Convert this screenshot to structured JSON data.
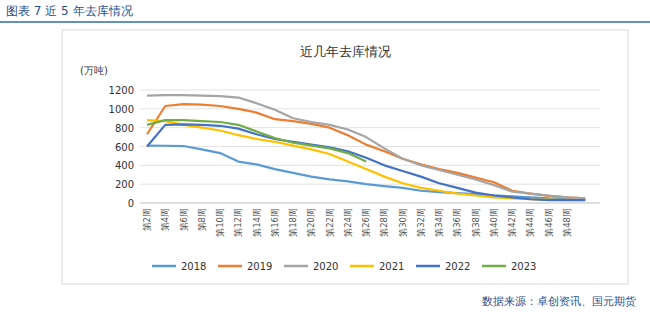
{
  "caption": "图表 7 近 5 年去库情况",
  "source": "数据来源：卓创资讯、国元期货",
  "chart_data": {
    "type": "line",
    "title": "近几年去库情况",
    "y_label": "(万吨)",
    "categories": [
      "第2周",
      "第4周",
      "第6周",
      "第8周",
      "第10周",
      "第12周",
      "第14周",
      "第16周",
      "第18周",
      "第20周",
      "第22周",
      "第24周",
      "第26周",
      "第28周",
      "第30周",
      "第32周",
      "第34周",
      "第36周",
      "第38周",
      "第40周",
      "第42周",
      "第44周",
      "第46周",
      "第48周",
      null
    ],
    "ylim": [
      0,
      1200
    ],
    "yticks": [
      0,
      200,
      400,
      600,
      800,
      1000,
      1200
    ],
    "grid": true,
    "legend": "bottom",
    "series": [
      {
        "name": "2018",
        "color": "#5b9bd5",
        "values": [
          610,
          608,
          605,
          570,
          530,
          440,
          410,
          360,
          320,
          280,
          250,
          230,
          200,
          180,
          160,
          130,
          115,
          105,
          95,
          80,
          70,
          60,
          50,
          45,
          40
        ]
      },
      {
        "name": "2019",
        "color": "#ed7d31",
        "values": [
          730,
          1030,
          1050,
          1045,
          1030,
          1000,
          960,
          890,
          870,
          840,
          800,
          720,
          620,
          550,
          470,
          410,
          360,
          320,
          270,
          220,
          130,
          100,
          75,
          60,
          50
        ]
      },
      {
        "name": "2020",
        "color": "#a5a5a5",
        "values": [
          1140,
          1145,
          1145,
          1140,
          1135,
          1120,
          1060,
          990,
          900,
          860,
          830,
          780,
          700,
          580,
          470,
          400,
          350,
          300,
          250,
          190,
          120,
          100,
          80,
          60,
          50
        ]
      },
      {
        "name": "2021",
        "color": "#ffc000",
        "values": [
          880,
          870,
          830,
          800,
          770,
          720,
          680,
          650,
          610,
          570,
          520,
          440,
          360,
          280,
          210,
          160,
          130,
          100,
          80,
          60,
          50,
          40,
          35,
          30,
          30
        ]
      },
      {
        "name": "2022",
        "color": "#4472c4",
        "values": [
          600,
          830,
          835,
          830,
          820,
          790,
          730,
          680,
          650,
          620,
          590,
          550,
          480,
          400,
          340,
          280,
          210,
          160,
          110,
          80,
          60,
          40,
          30,
          30,
          30
        ]
      },
      {
        "name": "2023",
        "color": "#70ad47",
        "values": [
          830,
          880,
          880,
          870,
          860,
          830,
          760,
          690,
          640,
          610,
          580,
          530,
          440,
          null,
          null,
          null,
          null,
          null,
          null,
          null,
          null,
          null,
          null,
          null,
          null
        ]
      }
    ]
  }
}
